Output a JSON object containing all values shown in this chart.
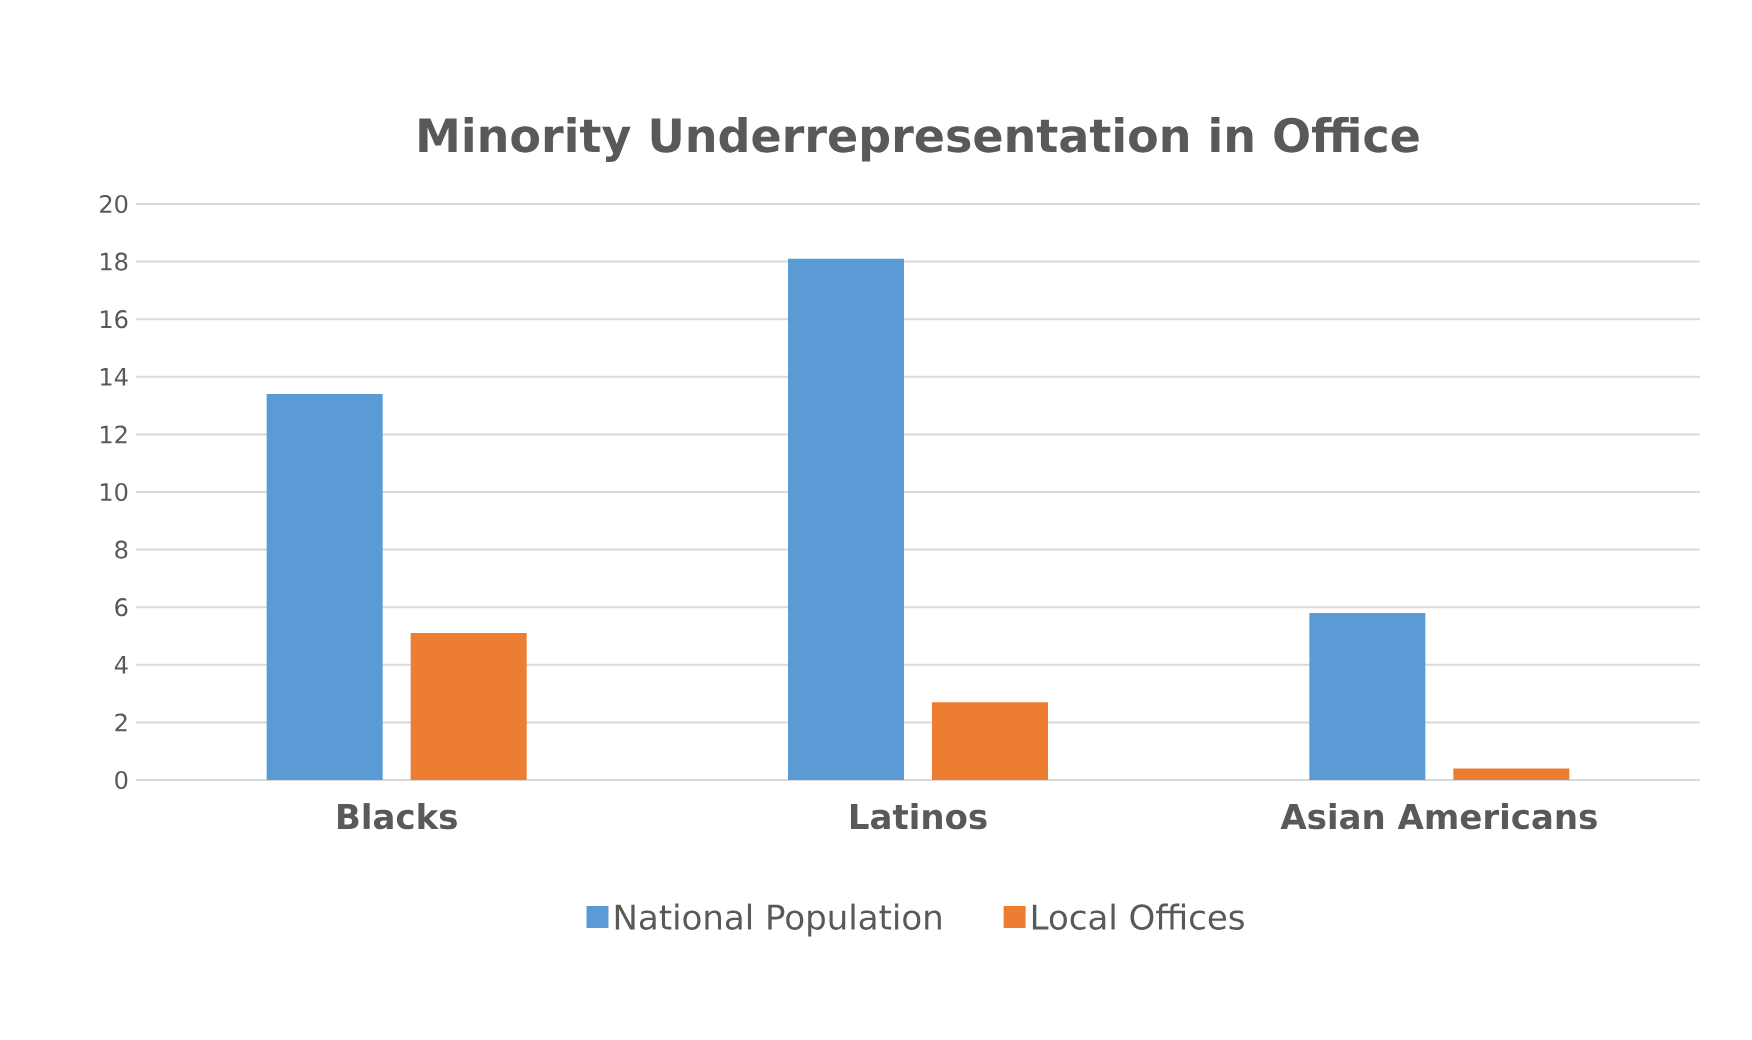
{
  "chart_data": {
    "type": "bar",
    "title": "Minority Underrepresentation in Office",
    "categories": [
      "Blacks",
      "Latinos",
      "Asian Americans"
    ],
    "series": [
      {
        "name": "National Population",
        "color": "#5b9bd5",
        "values": [
          13.4,
          18.1,
          5.8
        ]
      },
      {
        "name": "Local Offices",
        "color": "#ed7d31",
        "values": [
          5.1,
          2.7,
          0.4
        ]
      }
    ],
    "ylim": [
      0,
      20
    ],
    "yticks": [
      0,
      2,
      4,
      6,
      8,
      10,
      12,
      14,
      16,
      18,
      20
    ],
    "grid": "y",
    "legend": "bottom"
  }
}
